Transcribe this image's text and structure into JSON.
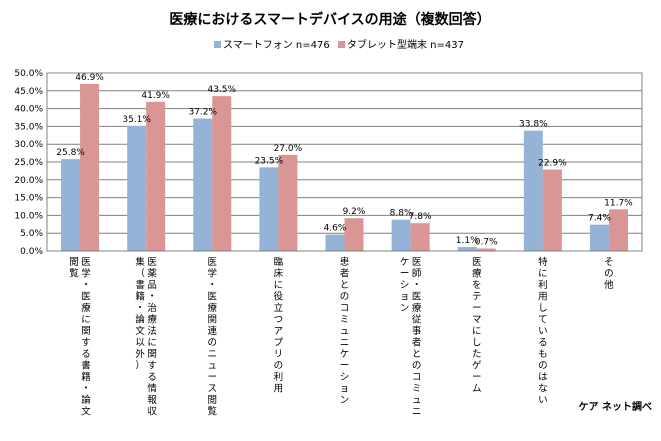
{
  "chart_data": {
    "type": "bar",
    "title": "医療におけるスマートデバイスの用途（複数回答）",
    "source": "ケア ネット調べ",
    "categories": [
      "医学・医療に関する書籍・論文閲覧",
      "医薬品・治療法に関する情報収集（書籍・論文以外）",
      "医学・医療関連のニュース閲覧",
      "臨床に役立つアプリの利用",
      "患者とのコミュニケーション",
      "医師・医療従事者とのコミュニケーション",
      "医療をテーマにしたゲーム",
      "特に利用しているものはない",
      "その他"
    ],
    "series": [
      {
        "name": "スマートフォン  n=476",
        "color": "#95B3D7",
        "values": [
          25.8,
          35.1,
          37.2,
          23.5,
          4.6,
          8.8,
          1.1,
          33.8,
          7.4
        ],
        "labels": [
          "25.8%",
          "35.1%",
          "37.2%",
          "23.5%",
          "4.6%",
          "8.8%",
          "1.1%",
          "33.8%",
          "7.4%"
        ]
      },
      {
        "name": "タブレット型端末  n=437",
        "color": "#D99694",
        "values": [
          46.9,
          41.9,
          43.5,
          27.0,
          9.2,
          7.8,
          0.7,
          22.9,
          11.7
        ],
        "labels": [
          "46.9%",
          "41.9%",
          "43.5%",
          "27.0%",
          "9.2%",
          "7.8%",
          "0.7%",
          "22.9%",
          "11.7%"
        ]
      }
    ],
    "yticks": [
      "0.0%",
      "5.0%",
      "10.0%",
      "15.0%",
      "20.0%",
      "25.0%",
      "30.0%",
      "35.0%",
      "40.0%",
      "45.0%",
      "50.0%"
    ],
    "ylim": [
      0,
      50
    ],
    "grid": true,
    "legend": "top-center"
  }
}
